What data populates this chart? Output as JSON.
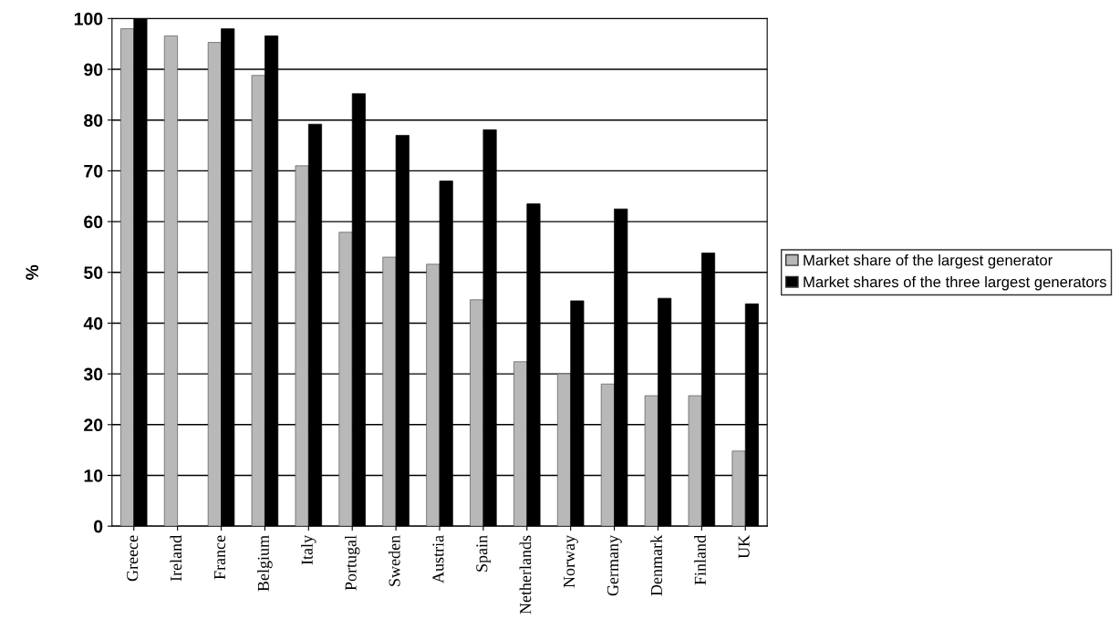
{
  "chart_data": {
    "type": "bar",
    "ylabel": "%",
    "categories": [
      "Greece",
      "Ireland",
      "France",
      "Belgium",
      "Italy",
      "Portugal",
      "Sweden",
      "Austria",
      "Spain",
      "Netherlands",
      "Norway",
      "Germany",
      "Denmark",
      "Finland",
      "UK"
    ],
    "series": [
      {
        "name": "Market share of the largest generator",
        "color": "#b8b8b8",
        "values": [
          98,
          96.6,
          95.3,
          88.8,
          71,
          57.9,
          53,
          51.6,
          44.6,
          32.4,
          30,
          28,
          25.7,
          25.7,
          14.8
        ]
      },
      {
        "name": "Market shares of the three largest generators",
        "color": "#000000",
        "values": [
          100,
          null,
          98,
          96.6,
          79.2,
          85.2,
          77,
          68,
          78.1,
          63.5,
          44.4,
          62.5,
          44.9,
          53.8,
          43.8
        ]
      }
    ],
    "ylim": [
      0,
      100
    ],
    "yticks": [
      0,
      10,
      20,
      30,
      40,
      50,
      60,
      70,
      80,
      90,
      100
    ],
    "grid": "y",
    "legend": "right"
  }
}
